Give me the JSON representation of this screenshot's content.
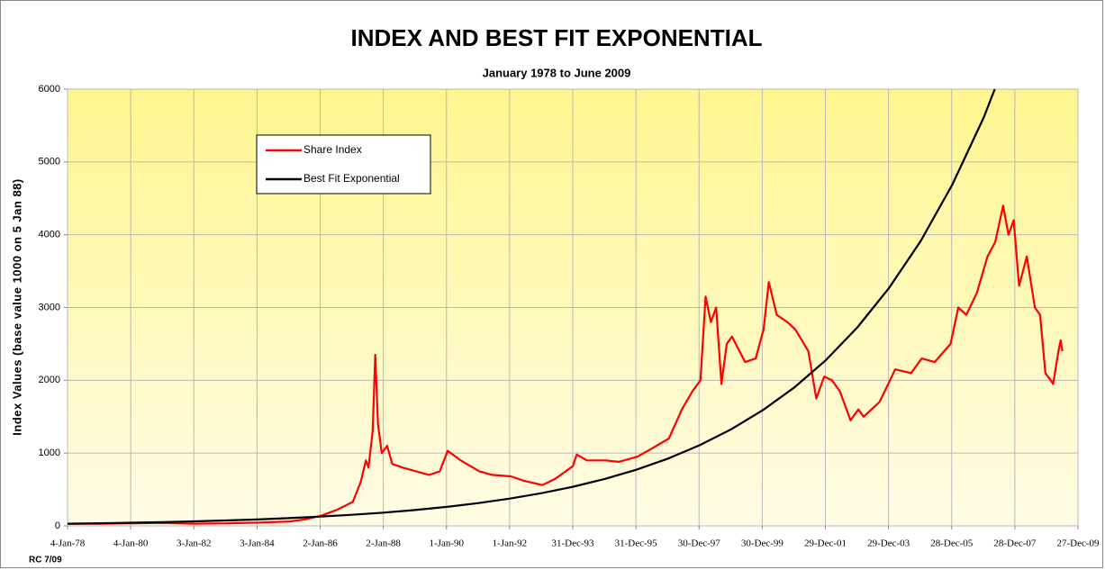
{
  "chart_data": {
    "type": "line",
    "title": "INDEX AND BEST FIT EXPONENTIAL",
    "subtitle": "January 1978 to June 2009",
    "y_label": "Index Values (base value 1000 on 5 Jan 88)",
    "note": "RC 7/09",
    "grid": true,
    "xlim": [
      "1978-01-04",
      "2009-12-27"
    ],
    "xticks": [
      {
        "value": "1978-01-04",
        "label": "4-Jan-78"
      },
      {
        "value": "1980-01-04",
        "label": "4-Jan-80"
      },
      {
        "value": "1982-01-03",
        "label": "3-Jan-82"
      },
      {
        "value": "1984-01-03",
        "label": "3-Jan-84"
      },
      {
        "value": "1986-01-02",
        "label": "2-Jan-86"
      },
      {
        "value": "1988-01-02",
        "label": "2-Jan-88"
      },
      {
        "value": "1990-01-01",
        "label": "1-Jan-90"
      },
      {
        "value": "1992-01-01",
        "label": "1-Jan-92"
      },
      {
        "value": "1993-12-31",
        "label": "31-Dec-93"
      },
      {
        "value": "1995-12-31",
        "label": "31-Dec-95"
      },
      {
        "value": "1997-12-30",
        "label": "30-Dec-97"
      },
      {
        "value": "1999-12-30",
        "label": "30-Dec-99"
      },
      {
        "value": "2001-12-29",
        "label": "29-Dec-01"
      },
      {
        "value": "2003-12-29",
        "label": "29-Dec-03"
      },
      {
        "value": "2005-12-28",
        "label": "28-Dec-05"
      },
      {
        "value": "2007-12-28",
        "label": "28-Dec-07"
      },
      {
        "value": "2009-12-27",
        "label": "27-Dec-09"
      }
    ],
    "ylim": [
      0,
      6000
    ],
    "yticks": [
      0,
      1000,
      2000,
      3000,
      4000,
      5000,
      6000
    ],
    "series": [
      {
        "name": "Share Index",
        "color": "#ff0000",
        "x": [
          "1978-01-04",
          "1979-01-15",
          "1980-01-15",
          "1981-01-15",
          "1982-01-15",
          "1983-01-15",
          "1984-01-15",
          "1985-01-15",
          "1985-07-15",
          "1986-01-15",
          "1986-07-15",
          "1987-01-15",
          "1987-04-15",
          "1987-06-15",
          "1987-07-15",
          "1987-09-01",
          "1987-10-01",
          "1987-11-01",
          "1987-12-15",
          "1988-02-15",
          "1988-04-15",
          "1988-08-15",
          "1989-01-15",
          "1989-06-15",
          "1989-10-15",
          "1990-01-15",
          "1990-06-15",
          "1991-01-15",
          "1991-06-15",
          "1992-01-15",
          "1992-06-15",
          "1993-01-15",
          "1993-06-15",
          "1994-01-01",
          "1994-02-15",
          "1994-06-15",
          "1995-01-15",
          "1995-06-15",
          "1996-01-15",
          "1996-06-15",
          "1997-01-15",
          "1997-06-15",
          "1997-10-15",
          "1998-01-15",
          "1998-03-15",
          "1998-05-15",
          "1998-07-15",
          "1998-09-15",
          "1998-11-15",
          "1999-01-15",
          "1999-06-15",
          "1999-10-15",
          "2000-01-15",
          "2000-03-15",
          "2000-06-15",
          "2000-10-15",
          "2001-01-15",
          "2001-06-15",
          "2001-09-15",
          "2001-12-15",
          "2002-03-15",
          "2002-06-15",
          "2002-10-15",
          "2003-01-15",
          "2003-03-15",
          "2003-09-15",
          "2004-01-15",
          "2004-03-15",
          "2004-09-15",
          "2005-01-15",
          "2005-06-15",
          "2005-12-15",
          "2006-03-15",
          "2006-06-15",
          "2006-10-15",
          "2007-02-15",
          "2007-05-15",
          "2007-08-15",
          "2007-10-15",
          "2007-12-15",
          "2008-02-15",
          "2008-05-15",
          "2008-08-15",
          "2008-10-15",
          "2008-12-15",
          "2009-02-15",
          "2009-03-15",
          "2009-05-15",
          "2009-06-10",
          "2009-06-30"
        ],
        "values": [
          30,
          30,
          35,
          40,
          30,
          35,
          45,
          60,
          90,
          140,
          220,
          330,
          600,
          900,
          800,
          1300,
          2350,
          1400,
          1000,
          1100,
          850,
          800,
          750,
          700,
          750,
          1030,
          900,
          750,
          700,
          680,
          620,
          560,
          650,
          820,
          980,
          900,
          900,
          880,
          950,
          1050,
          1200,
          1600,
          1850,
          2000,
          3150,
          2800,
          3000,
          1950,
          2500,
          2600,
          2250,
          2300,
          2700,
          3350,
          2900,
          2800,
          2700,
          2400,
          1750,
          2050,
          2000,
          1850,
          1450,
          1600,
          1500,
          1700,
          2000,
          2150,
          2100,
          2300,
          2250,
          2500,
          3000,
          2900,
          3200,
          3700,
          3900,
          4400,
          4000,
          4200,
          3300,
          3700,
          3000,
          2900,
          2100,
          2000,
          1950,
          2400,
          2550,
          2400
        ]
      },
      {
        "name": "Best Fit Exponential",
        "color": "#000000",
        "x": [
          "1978-01-04",
          "1979-01-04",
          "1980-01-04",
          "1981-01-04",
          "1982-01-04",
          "1983-01-04",
          "1984-01-04",
          "1985-01-04",
          "1986-01-04",
          "1987-01-04",
          "1988-01-04",
          "1989-01-04",
          "1990-01-04",
          "1991-01-04",
          "1992-01-04",
          "1993-01-04",
          "1994-01-04",
          "1995-01-04",
          "1996-01-04",
          "1997-01-04",
          "1998-01-04",
          "1999-01-04",
          "2000-01-04",
          "2001-01-04",
          "2002-01-04",
          "2003-01-04",
          "2004-01-04",
          "2005-01-04",
          "2006-01-04",
          "2007-01-04",
          "2007-05-10"
        ],
        "values": [
          30,
          36,
          43,
          52,
          62,
          74,
          88,
          106,
          127,
          152,
          182,
          218,
          261,
          313,
          375,
          449,
          538,
          644,
          771,
          924,
          1107,
          1326,
          1588,
          1902,
          2278,
          2728,
          3268,
          3914,
          4688,
          5615,
          6000
        ]
      }
    ]
  }
}
